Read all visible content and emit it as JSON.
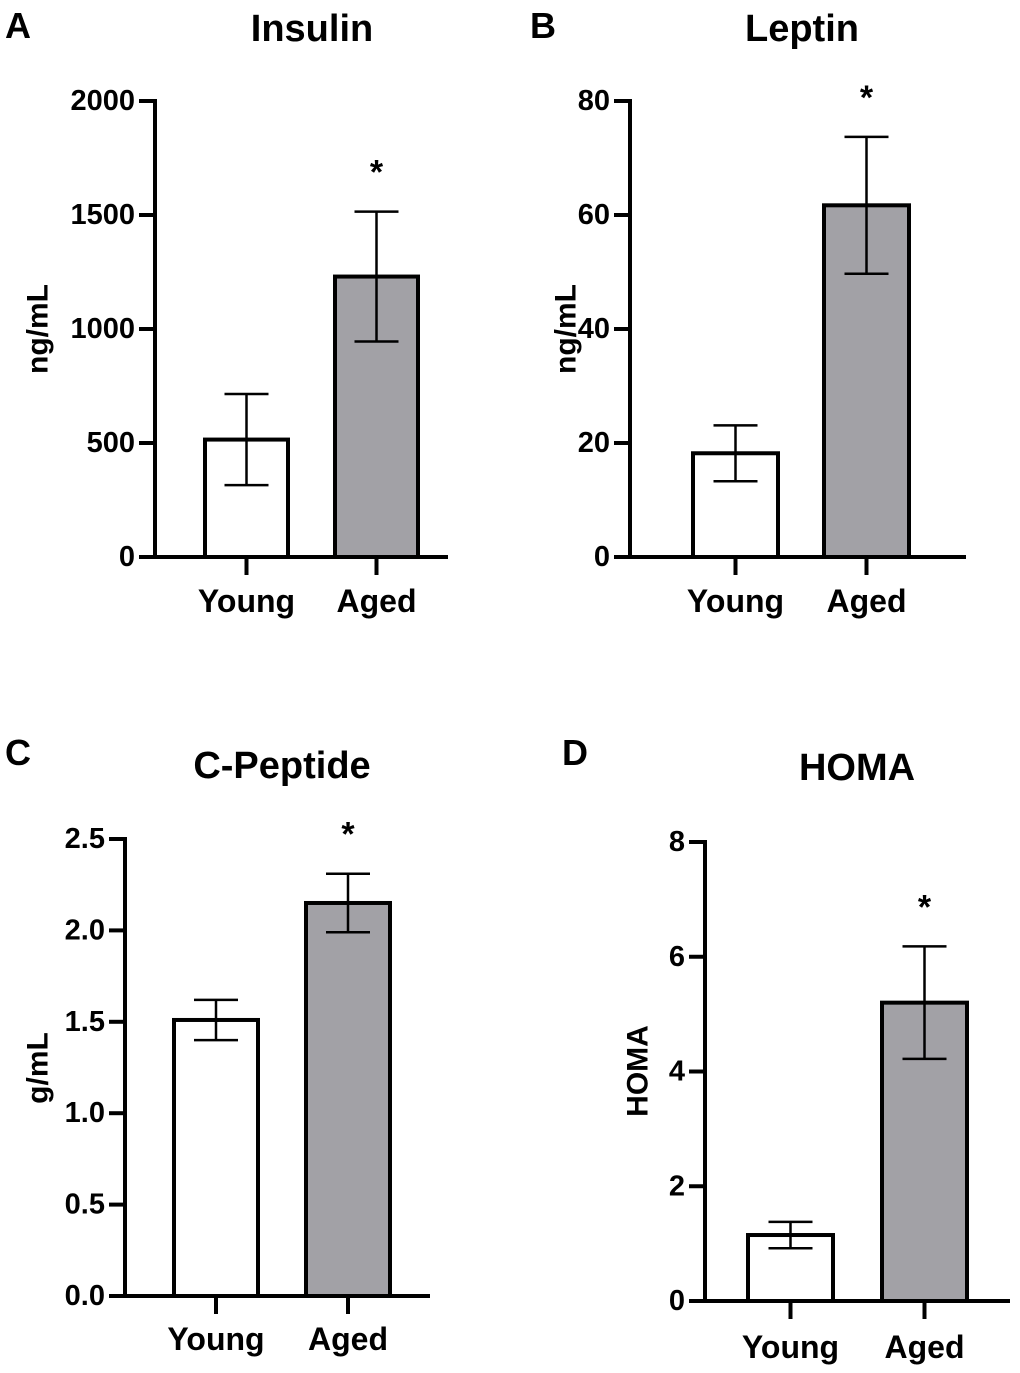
{
  "colors": {
    "young_fill": "#ffffff",
    "aged_fill": "#a2a1a6",
    "stroke": "#000000"
  },
  "chart_data": [
    {
      "panel": "A",
      "type": "bar",
      "title": "Insulin",
      "ylabel": "ng/mL",
      "ylim": [
        0,
        2000
      ],
      "yticks": [
        "0",
        "500",
        "1000",
        "1500",
        "2000"
      ],
      "categories": [
        "Young",
        "Aged"
      ],
      "values": [
        515,
        1230
      ],
      "errors": [
        200,
        285
      ],
      "significance": [
        "",
        "*"
      ]
    },
    {
      "panel": "B",
      "type": "bar",
      "title": "Leptin",
      "ylabel": "ng/mL",
      "ylim": [
        0,
        80
      ],
      "yticks": [
        "0",
        "20",
        "40",
        "60",
        "80"
      ],
      "categories": [
        "Young",
        "Aged"
      ],
      "values": [
        18.2,
        61.7
      ],
      "errors": [
        4.9,
        12.0
      ],
      "significance": [
        "",
        "*"
      ]
    },
    {
      "panel": "C",
      "type": "bar",
      "title": "C-Peptide",
      "ylabel": "g/mL",
      "ylim": [
        0,
        2.5
      ],
      "yticks": [
        "0.0",
        "0.5",
        "1.0",
        "1.5",
        "2.0",
        "2.5"
      ],
      "categories": [
        "Young",
        "Aged"
      ],
      "values": [
        1.51,
        2.15
      ],
      "errors": [
        0.11,
        0.16
      ],
      "significance": [
        "",
        "*"
      ]
    },
    {
      "panel": "D",
      "type": "bar",
      "title": "HOMA",
      "ylabel": "HOMA",
      "ylim": [
        0,
        8
      ],
      "yticks": [
        "0",
        "2",
        "4",
        "6",
        "8"
      ],
      "categories": [
        "Young",
        "Aged"
      ],
      "values": [
        1.15,
        5.2
      ],
      "errors": [
        0.23,
        0.98
      ],
      "significance": [
        "",
        "*"
      ]
    }
  ]
}
